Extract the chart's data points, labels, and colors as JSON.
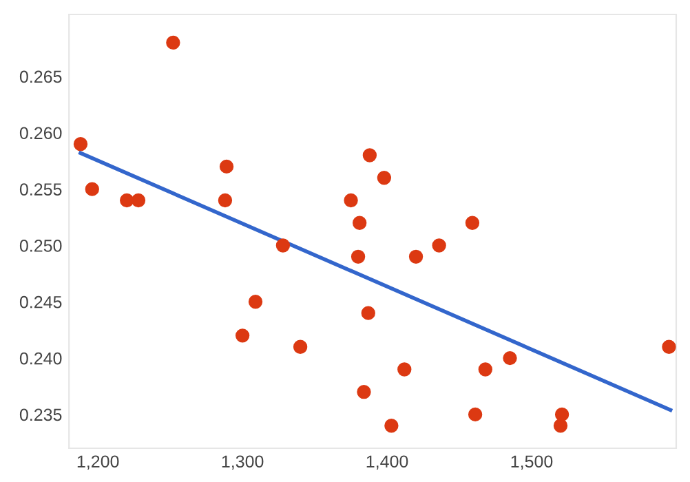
{
  "chart_data": {
    "type": "scatter",
    "xlim": [
      1180,
      1600
    ],
    "ylim": [
      0.232,
      0.2705
    ],
    "xticks": [
      {
        "value": 1200,
        "label": "1,200"
      },
      {
        "value": 1300,
        "label": "1,300"
      },
      {
        "value": 1400,
        "label": "1,400"
      },
      {
        "value": 1500,
        "label": "1,500"
      }
    ],
    "yticks": [
      0.235,
      {
        "value": 0.24,
        "label": "0.240"
      },
      0.245,
      {
        "value": 0.25,
        "label": "0.250"
      },
      0.255,
      {
        "value": 0.26,
        "label": "0.260"
      },
      0.265
    ],
    "grid": false,
    "series": [
      {
        "marker": "circle",
        "color": "#dc3912",
        "x": [
          1188,
          1196,
          1220,
          1228,
          1252,
          1289,
          1288,
          1328,
          1309,
          1300,
          1340,
          1388,
          1398,
          1375,
          1381,
          1380,
          1387,
          1384,
          1420,
          1436,
          1459,
          1412,
          1403,
          1461,
          1468,
          1485,
          1521,
          1520,
          1595
        ],
        "values": [
          0.259,
          0.255,
          0.254,
          0.254,
          0.268,
          0.257,
          0.254,
          0.25,
          0.245,
          0.242,
          0.241,
          0.258,
          0.256,
          0.254,
          0.252,
          0.249,
          0.244,
          0.237,
          0.249,
          0.25,
          0.252,
          0.239,
          0.234,
          0.235,
          0.239,
          0.24,
          0.235,
          0.234,
          0.241
        ]
      },
      {
        "type": "line",
        "marker": "none",
        "color": "#3366cc",
        "x": [
          1188,
          1596
        ],
        "values": [
          0.2582,
          0.2354
        ]
      }
    ]
  }
}
